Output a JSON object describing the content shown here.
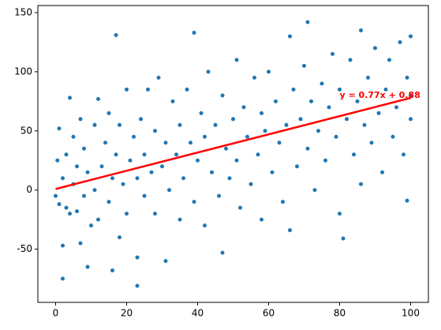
{
  "chart_data": {
    "type": "scatter",
    "x": [
      0,
      0.5,
      1,
      1,
      2,
      2,
      2,
      3,
      3,
      4,
      4,
      5,
      5,
      6,
      6,
      7,
      7,
      8,
      8,
      9,
      9,
      10,
      11,
      11,
      12,
      12,
      13,
      14,
      15,
      15,
      16,
      16,
      17,
      17,
      18,
      18,
      19,
      20,
      20,
      21,
      22,
      23,
      23,
      23,
      24,
      25,
      25,
      26,
      27,
      28,
      28,
      29,
      30,
      31,
      31,
      32,
      33,
      34,
      35,
      35,
      36,
      37,
      38,
      39,
      39,
      40,
      41,
      42,
      42,
      43,
      44,
      45,
      46,
      47,
      47,
      48,
      49,
      50,
      51,
      51,
      52,
      53,
      54,
      55,
      56,
      57,
      58,
      58,
      59,
      60,
      61,
      62,
      63,
      64,
      65,
      66,
      66,
      67,
      68,
      69,
      70,
      71,
      71,
      72,
      73,
      74,
      75,
      76,
      77,
      78,
      79,
      80,
      80,
      81,
      82,
      83,
      84,
      85,
      86,
      86,
      87,
      88,
      89,
      90,
      91,
      92,
      93,
      94,
      95,
      96,
      97,
      98,
      99,
      99,
      100,
      100,
      100
    ],
    "series": [
      {
        "color": "#1f77b4",
        "values": [
          -5,
          25,
          52,
          -12,
          -47,
          -75,
          10,
          -15,
          30,
          78,
          -20,
          5,
          45,
          -18,
          20,
          -45,
          60,
          -5,
          35,
          -65,
          15,
          -30,
          55,
          0,
          77,
          -25,
          20,
          40,
          -10,
          65,
          -68,
          10,
          131,
          30,
          -40,
          55,
          5,
          85,
          -20,
          25,
          45,
          -81,
          -57,
          10,
          60,
          -5,
          30,
          85,
          15,
          -20,
          50,
          95,
          20,
          -60,
          40,
          0,
          75,
          30,
          -25,
          55,
          10,
          85,
          40,
          133,
          -10,
          25,
          65,
          -30,
          45,
          100,
          15,
          55,
          -5,
          -53,
          80,
          35,
          10,
          60,
          110,
          25,
          -15,
          70,
          45,
          5,
          95,
          30,
          -25,
          65,
          50,
          100,
          15,
          75,
          40,
          -10,
          55,
          -34,
          130,
          85,
          20,
          60,
          105,
          142,
          35,
          75,
          0,
          50,
          90,
          25,
          70,
          115,
          45,
          -20,
          85,
          -41,
          60,
          110,
          30,
          75,
          135,
          5,
          55,
          95,
          40,
          120,
          65,
          15,
          85,
          110,
          45,
          70,
          125,
          30,
          -9,
          95,
          60,
          130,
          80
        ]
      }
    ],
    "fit": {
      "color": "red",
      "x": [
        0,
        100
      ],
      "values": [
        0.88,
        77.88
      ]
    },
    "annotation": {
      "text": "y = 0.77x + 0.88",
      "x": 80,
      "y": 80
    },
    "xlim": [
      -5,
      105
    ],
    "ylim": [
      -95,
      156
    ],
    "xticks": [
      0,
      20,
      40,
      60,
      80,
      100
    ],
    "yticks": [
      -50,
      0,
      50,
      100,
      150
    ]
  }
}
